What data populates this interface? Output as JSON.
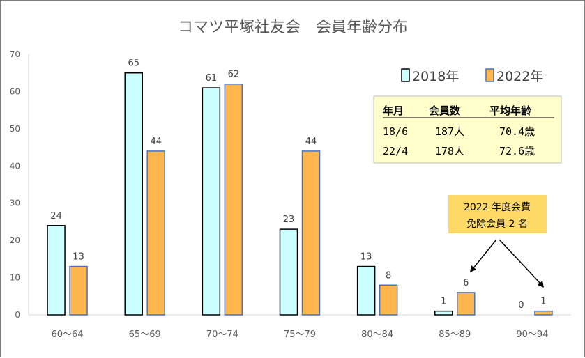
{
  "chart_data": {
    "type": "bar",
    "title": "コマツ平塚社友会　会員年齢分布",
    "categories": [
      "60～64",
      "65～69",
      "70～74",
      "75～79",
      "80～84",
      "85～89",
      "90～94"
    ],
    "series": [
      {
        "name": "2018年",
        "values": [
          24,
          65,
          61,
          23,
          13,
          1,
          0
        ],
        "color": "#ccffff",
        "stroke": "#000000"
      },
      {
        "name": "2022年",
        "values": [
          13,
          44,
          62,
          44,
          8,
          6,
          1
        ],
        "color": "#ffb74d",
        "stroke": "#4472c4"
      }
    ],
    "ylim": [
      0,
      70
    ],
    "yticks": [
      0,
      10,
      20,
      30,
      40,
      50,
      60,
      70
    ],
    "grid": false,
    "legend": "top-right"
  },
  "summary_table": {
    "headers": [
      "年月",
      "会員数",
      "平均年齢"
    ],
    "rows": [
      [
        "18/6",
        "187人",
        "70.4歳"
      ],
      [
        "22/4",
        "178人",
        "72.6歳"
      ]
    ],
    "bg": "#ffffcc"
  },
  "callout": {
    "line1": "2022 年度会費",
    "line2": "免除会員 2 名",
    "bg": "#ffd966"
  }
}
